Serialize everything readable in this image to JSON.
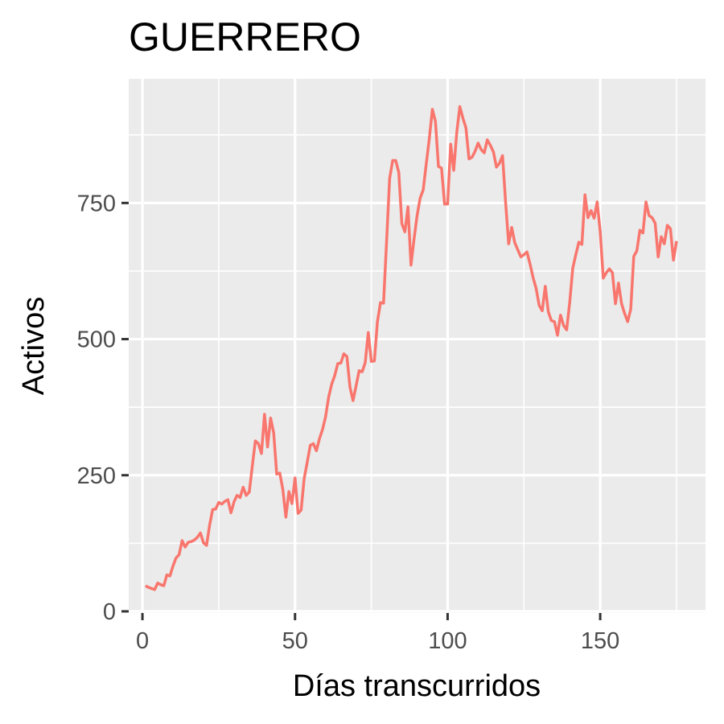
{
  "chart_data": {
    "type": "line",
    "title": "GUERRERO",
    "xlabel": "Días transcurridos",
    "ylabel": "Activos",
    "xlim": [
      -4.5,
      184.5
    ],
    "ylim": [
      -3,
      978
    ],
    "x_ticks": [
      0,
      50,
      100,
      150
    ],
    "y_ticks": [
      0,
      250,
      500,
      750
    ],
    "x_minor": [
      25,
      75,
      125,
      175
    ],
    "y_minor": [
      125,
      375,
      625,
      875
    ],
    "grid": true,
    "legend": "none",
    "colors": {
      "line": "#F8766D",
      "panel": "#EBEBEB",
      "grid": "#FFFFFF",
      "tick": "#333333"
    },
    "series": [
      {
        "x": [
          1,
          2,
          3,
          4,
          5,
          6,
          7,
          8,
          9,
          10,
          11,
          12,
          13,
          14,
          15,
          16,
          17,
          18,
          19,
          20,
          21,
          22,
          23,
          24,
          25,
          26,
          27,
          28,
          29,
          30,
          31,
          32,
          33,
          34,
          35,
          36,
          37,
          38,
          39,
          40,
          41,
          42,
          43,
          44,
          45,
          46,
          47,
          48,
          49,
          50,
          51,
          52,
          53,
          54,
          55,
          56,
          57,
          58,
          59,
          60,
          61,
          62,
          63,
          64,
          65,
          66,
          67,
          68,
          69,
          70,
          71,
          72,
          73,
          74,
          75,
          76,
          77,
          78,
          79,
          80,
          81,
          82,
          83,
          84,
          85,
          86,
          87,
          88,
          89,
          90,
          91,
          92,
          93,
          94,
          95,
          96,
          97,
          98,
          99,
          100,
          101,
          102,
          103,
          104,
          105,
          106,
          107,
          108,
          109,
          110,
          111,
          112,
          113,
          114,
          115,
          116,
          117,
          118,
          119,
          120,
          121,
          122,
          123,
          124,
          125,
          126,
          127,
          128,
          129,
          130,
          131,
          132,
          133,
          134,
          135,
          136,
          137,
          138,
          139,
          140,
          141,
          142,
          143,
          144,
          145,
          146,
          147,
          148,
          149,
          150,
          151,
          152,
          153,
          154,
          155,
          156,
          157,
          158,
          159,
          160,
          161,
          162,
          163,
          164,
          165,
          166,
          167,
          168,
          169,
          170,
          171,
          172,
          173,
          174,
          175
        ],
        "y": [
          47,
          44,
          42,
          40,
          52,
          49,
          47,
          67,
          65,
          83,
          98,
          104,
          130,
          118,
          127,
          128,
          131,
          136,
          144,
          126,
          121,
          158,
          187,
          188,
          200,
          197,
          202,
          205,
          181,
          201,
          213,
          209,
          228,
          213,
          219,
          267,
          313,
          308,
          290,
          362,
          302,
          355,
          328,
          252,
          254,
          224,
          173,
          220,
          198,
          245,
          180,
          186,
          244,
          274,
          305,
          308,
          295,
          317,
          334,
          357,
          393,
          417,
          433,
          455,
          456,
          473,
          468,
          412,
          387,
          414,
          442,
          440,
          457,
          512,
          459,
          460,
          532,
          567,
          566,
          679,
          795,
          828,
          828,
          806,
          712,
          697,
          743,
          636,
          684,
          727,
          759,
          774,
          822,
          868,
          922,
          900,
          817,
          814,
          748,
          748,
          858,
          810,
          880,
          927,
          906,
          888,
          831,
          834,
          845,
          860,
          848,
          842,
          866,
          856,
          844,
          816,
          823,
          837,
          751,
          675,
          705,
          677,
          664,
          651,
          655,
          660,
          638,
          613,
          593,
          562,
          552,
          597,
          550,
          534,
          532,
          507,
          544,
          525,
          517,
          567,
          630,
          655,
          678,
          674,
          765,
          723,
          736,
          722,
          752,
          697,
          612,
          622,
          629,
          622,
          565,
          603,
          565,
          547,
          532,
          555,
          652,
          662,
          700,
          695,
          752,
          727,
          723,
          713,
          651,
          688,
          675,
          709,
          703,
          645,
          680
        ]
      }
    ]
  }
}
